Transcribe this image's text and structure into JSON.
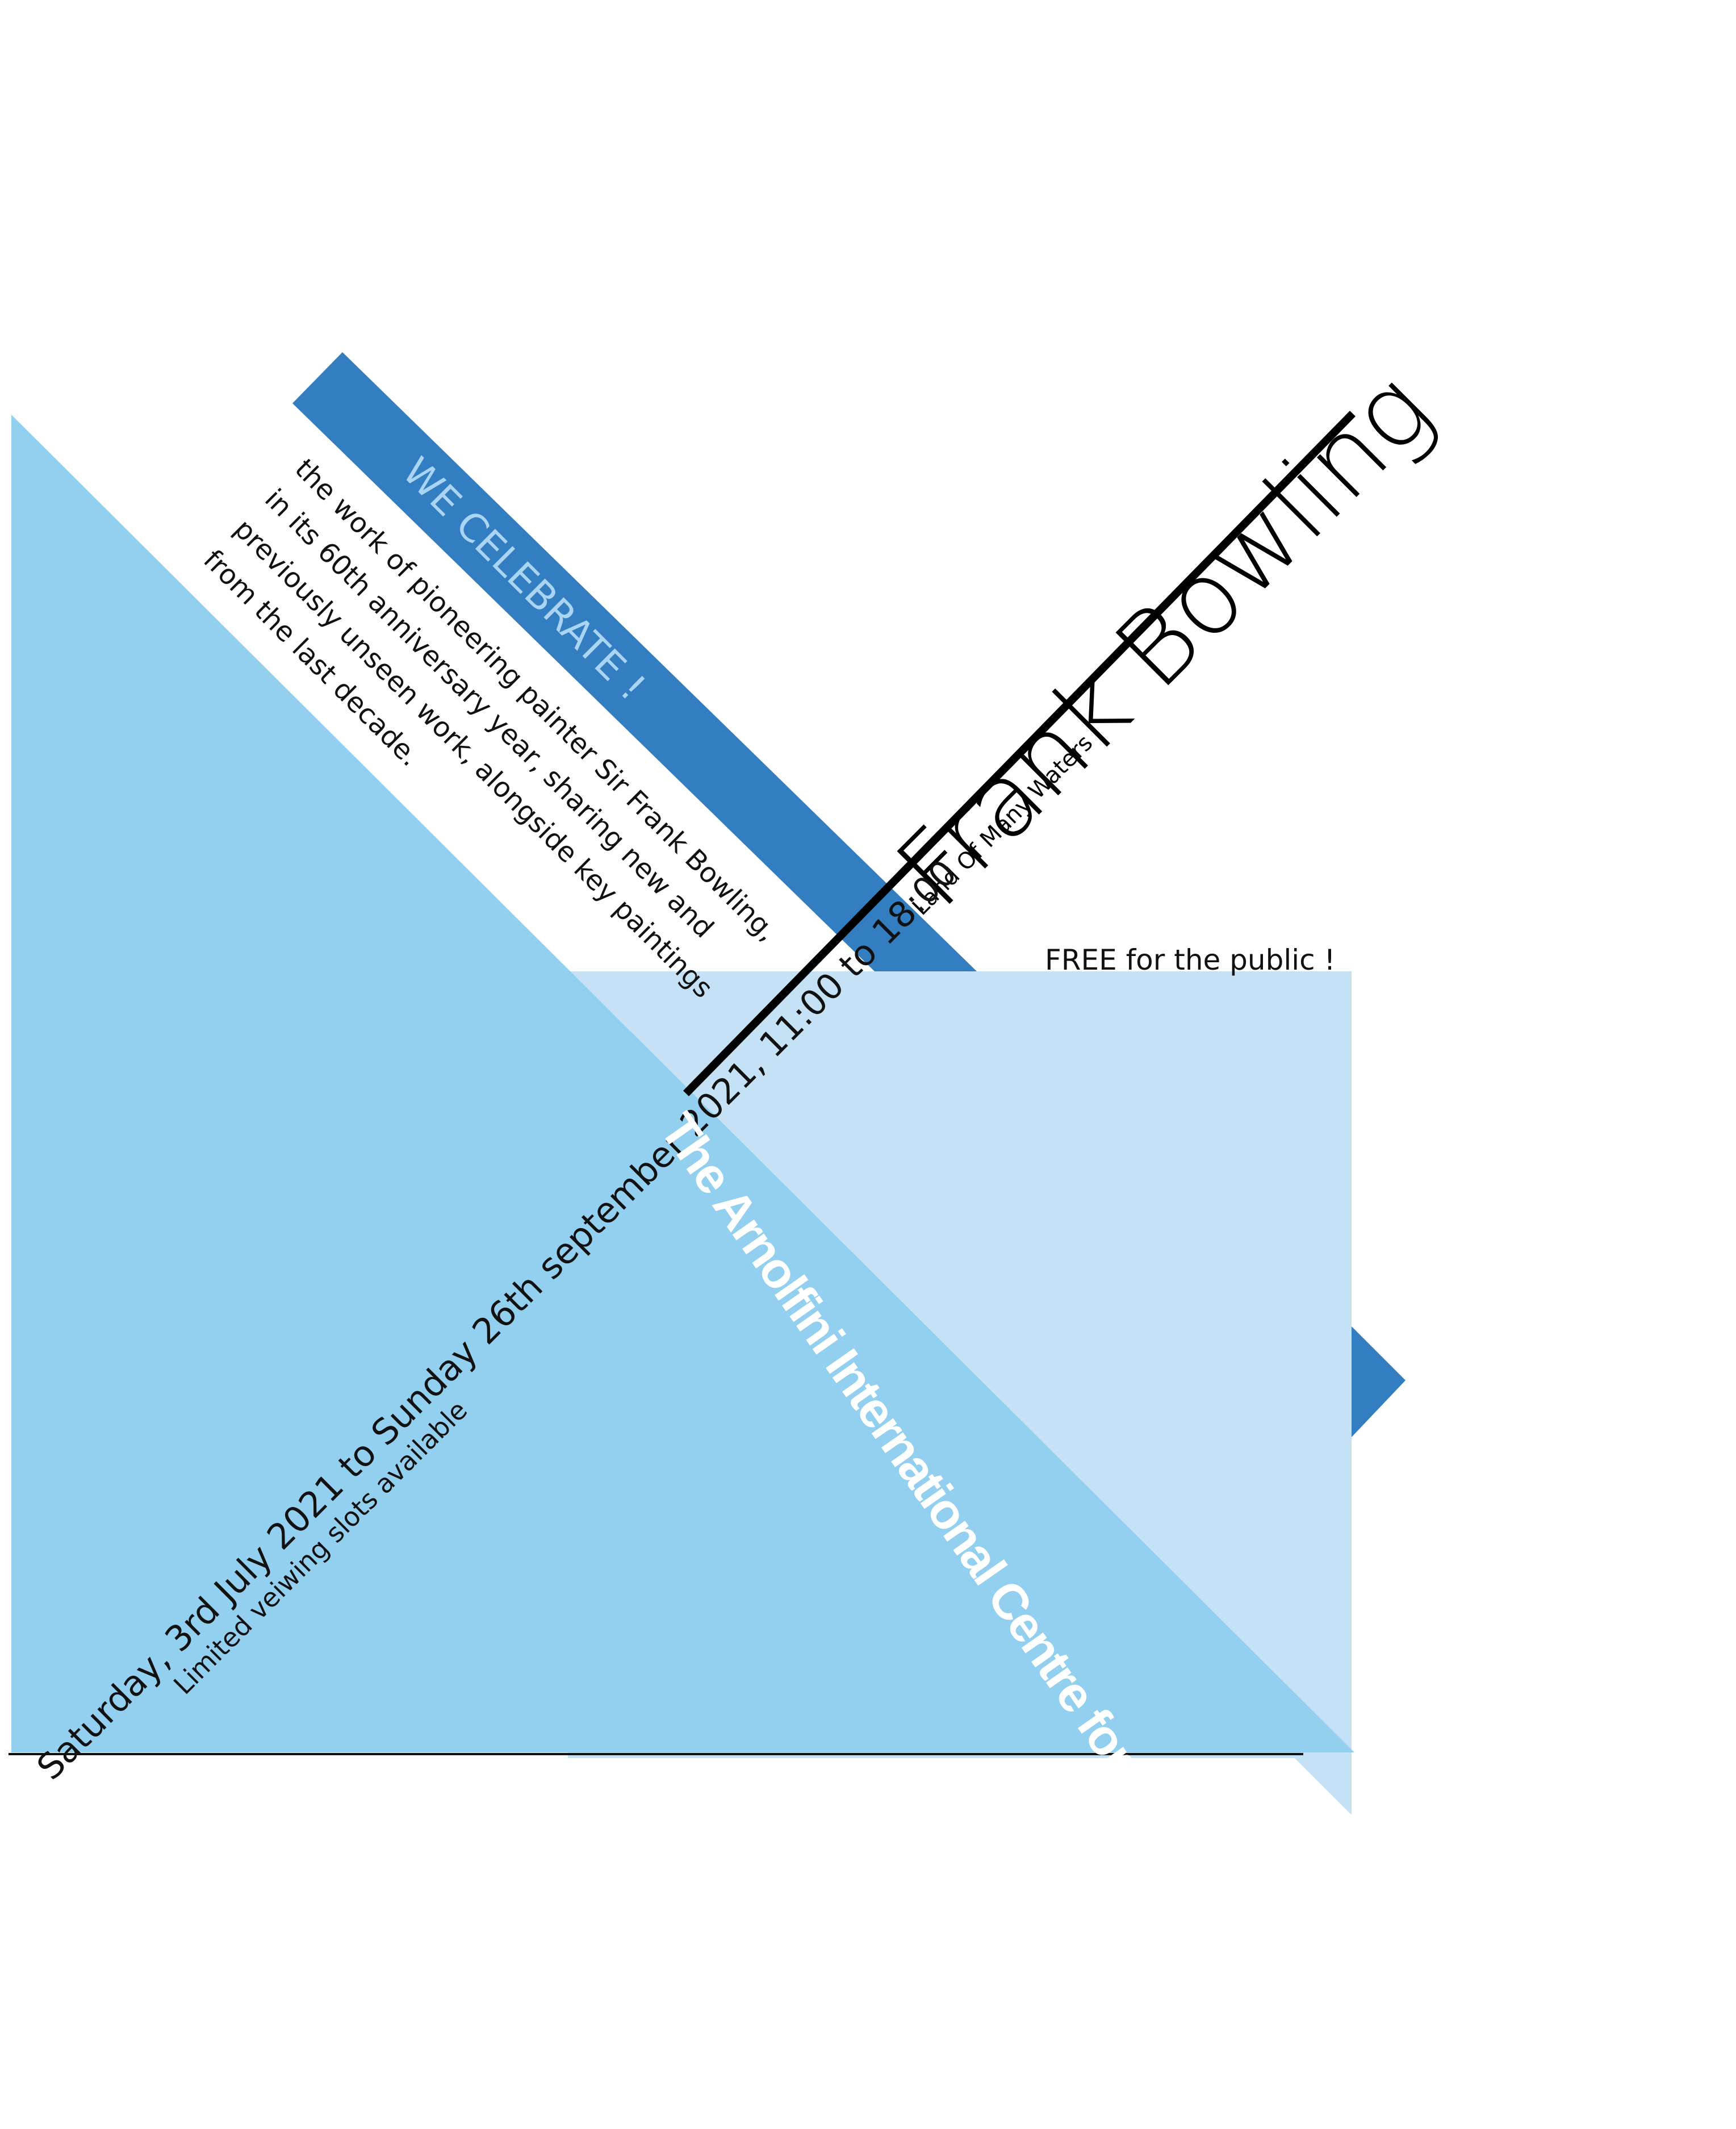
{
  "poster": {
    "title": "Frank Bowling",
    "subtitle": "Land Of Many Waters",
    "banner": "WE CELEBRATE !",
    "body_lines": [
      "the work of pioneering painter Sir Frank Bowling,",
      "in its 60th anniversary year, sharing new and",
      "previously unseen work, alongside key paintings",
      "from the last decade.",
      ""
    ],
    "dates": "Saturday, 3rd July 2021 to Sunday 26th september 2021, 11:00 to 18:00",
    "slots_note": "Limited veiwing slots available",
    "venue": "The Arnolfini International Centre for Contemporary Arts",
    "admission": "FREE for the public !"
  },
  "colors": {
    "background": "#ffffff",
    "triangle_main": "#93d0f0",
    "rectangle_pale": "#c5e1f5",
    "band_dark": "#337dc1",
    "banner_text": "#a9d4f3",
    "text": "#111111",
    "venue_text": "#ffffff"
  }
}
